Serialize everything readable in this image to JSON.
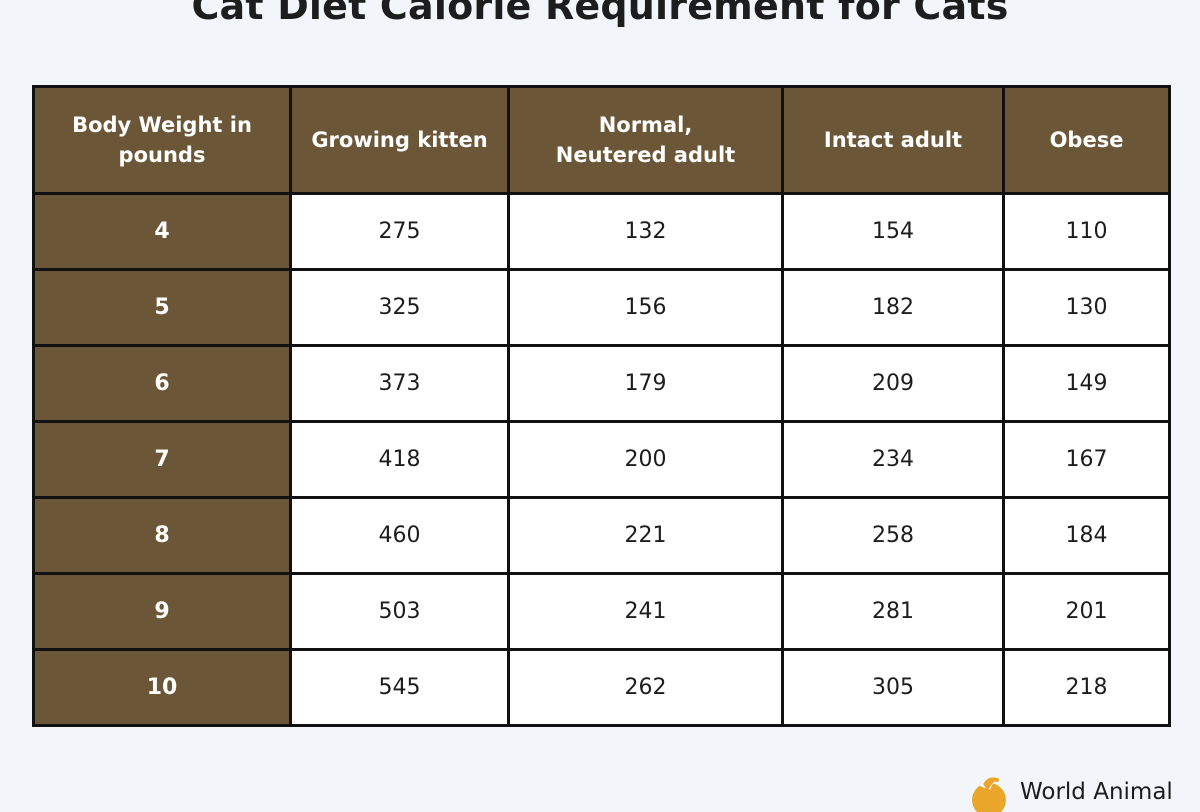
{
  "title": "Cat Diet Calorie Requirement for Cats",
  "chart_data": {
    "type": "table",
    "columns": [
      "Body Weight in pounds",
      "Growing kitten",
      "Normal, Neutered adult",
      "Intact adult",
      "Obese"
    ],
    "rows": [
      [
        4,
        275,
        132,
        154,
        110
      ],
      [
        5,
        325,
        156,
        182,
        130
      ],
      [
        6,
        373,
        179,
        209,
        149
      ],
      [
        7,
        418,
        200,
        234,
        167
      ],
      [
        8,
        460,
        221,
        258,
        184
      ],
      [
        9,
        503,
        241,
        281,
        201
      ],
      [
        10,
        545,
        262,
        305,
        218
      ]
    ]
  },
  "brand": {
    "logo_text": "World Animal",
    "logo_icon": "bird-logo-icon"
  },
  "colors": {
    "header_bg": "#6b5637",
    "cell_bg": "#ffffff",
    "border": "#111111",
    "logo_accent": "#e9a62a"
  }
}
